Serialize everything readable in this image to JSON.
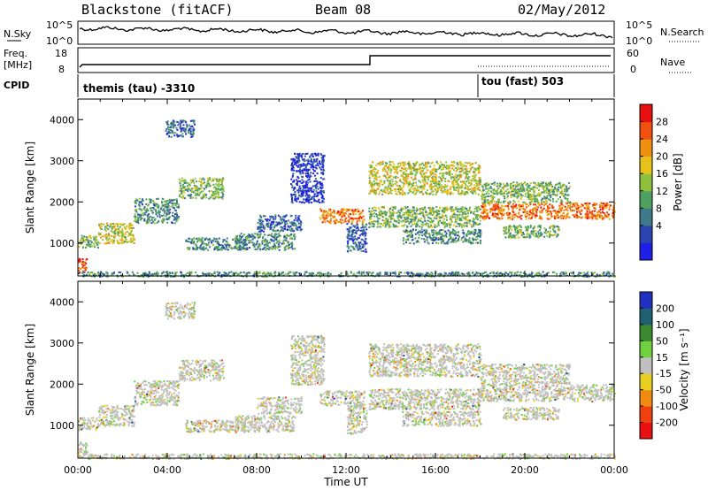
{
  "header": {
    "station": "Blackstone (fitACF)",
    "beam": "Beam 08",
    "date": "02/May/2012"
  },
  "panels": {
    "noise": {
      "left_label": "N.Sky",
      "right_label": "N.Search",
      "left_ticks": [
        "10^5",
        "10^0"
      ],
      "right_ticks": [
        "10^5",
        "10^0"
      ]
    },
    "freq": {
      "left_label_line1": "Freq.",
      "left_label_line2": "[MHz]",
      "right_label": "Nave",
      "left_ticks": [
        "18",
        "8"
      ],
      "right_ticks": [
        "60",
        "0"
      ]
    },
    "cpid": {
      "label": "CPID",
      "entries": [
        "themis (tau) -3310",
        "tou (fast) 503"
      ]
    }
  },
  "chart_data": [
    {
      "type": "heatmap",
      "name": "power",
      "ylabel": "Slant Range [km]",
      "yticks": [
        1000,
        2000,
        3000,
        4000
      ],
      "ylim": [
        200,
        4500
      ],
      "xlim_hours": [
        0,
        24
      ],
      "colorbar_label": "Power [dB]",
      "colorbar_ticks": [
        4,
        8,
        12,
        16,
        20,
        24,
        28
      ],
      "colors": [
        "#1f1fe8",
        "#2a45b0",
        "#3e7a8a",
        "#4fa060",
        "#8fc03c",
        "#e8c21c",
        "#f09010",
        "#f05010",
        "#e81010"
      ]
    },
    {
      "type": "heatmap",
      "name": "velocity",
      "ylabel": "Slant Range [km]",
      "yticks": [
        1000,
        2000,
        3000,
        4000
      ],
      "ylim": [
        200,
        4500
      ],
      "xlim_hours": [
        0,
        24
      ],
      "xticks": [
        "00:00",
        "04:00",
        "08:00",
        "12:00",
        "16:00",
        "20:00",
        "00:00"
      ],
      "xlabel": "Time UT",
      "colorbar_label": "Velocity [m s⁻¹]",
      "colorbar_ticks": [
        200,
        100,
        50,
        15,
        -15,
        -50,
        -100,
        -200
      ],
      "colors": [
        "#2030c0",
        "#206070",
        "#3a8a30",
        "#70d040",
        "#c0c0c0",
        "#e8d020",
        "#f08a10",
        "#f04010",
        "#e81010"
      ]
    }
  ],
  "data_regions": [
    {
      "t0": 0.0,
      "t1": 0.4,
      "r0": 300,
      "r1": 650,
      "level": 8
    },
    {
      "t0": 0.0,
      "t1": 0.9,
      "r0": 900,
      "r1": 1200,
      "level": 4
    },
    {
      "t0": 0.9,
      "t1": 2.5,
      "r0": 1000,
      "r1": 1500,
      "level": 5
    },
    {
      "t0": 2.5,
      "t1": 4.5,
      "r0": 1500,
      "r1": 2100,
      "level": 3
    },
    {
      "t0": 4.5,
      "t1": 6.5,
      "r0": 2100,
      "r1": 2600,
      "level": 4
    },
    {
      "t0": 3.9,
      "t1": 5.2,
      "r0": 3600,
      "r1": 4000,
      "level": 2
    },
    {
      "t0": 4.8,
      "t1": 7.5,
      "r0": 850,
      "r1": 1150,
      "level": 3
    },
    {
      "t0": 7.0,
      "t1": 9.7,
      "r0": 850,
      "r1": 1250,
      "level": 3
    },
    {
      "t0": 8.0,
      "t1": 10.0,
      "r0": 1300,
      "r1": 1700,
      "level": 2
    },
    {
      "t0": 9.5,
      "t1": 11.0,
      "r0": 2000,
      "r1": 3200,
      "level": 1
    },
    {
      "t0": 10.8,
      "t1": 12.8,
      "r0": 1500,
      "r1": 1850,
      "level": 7
    },
    {
      "t0": 12.0,
      "t1": 12.9,
      "r0": 800,
      "r1": 1500,
      "level": 2
    },
    {
      "t0": 13.0,
      "t1": 18.0,
      "r0": 2200,
      "r1": 3000,
      "level": 5
    },
    {
      "t0": 13.0,
      "t1": 18.0,
      "r0": 1400,
      "r1": 1900,
      "level": 4
    },
    {
      "t0": 14.5,
      "t1": 18.0,
      "r0": 1000,
      "r1": 1350,
      "level": 3
    },
    {
      "t0": 18.0,
      "t1": 24.0,
      "r0": 1600,
      "r1": 2000,
      "level": 7
    },
    {
      "t0": 18.0,
      "t1": 22.0,
      "r0": 2000,
      "r1": 2500,
      "level": 4
    },
    {
      "t0": 19.0,
      "t1": 21.5,
      "r0": 1150,
      "r1": 1450,
      "level": 4
    },
    {
      "t0": 0.0,
      "t1": 24.0,
      "r0": 200,
      "r1": 320,
      "level": 3
    }
  ]
}
